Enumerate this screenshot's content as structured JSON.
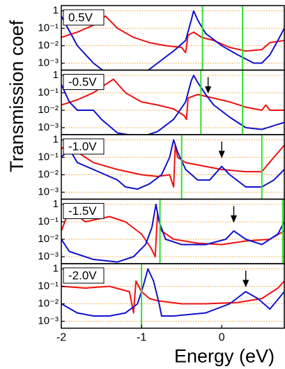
{
  "ylabel": "Transmission coef",
  "chart_data": [
    {
      "type": "line",
      "label": "0.5V",
      "log_y": true,
      "grid": true,
      "grid_color": "#f0a030",
      "xlim": [
        -2,
        0.78
      ],
      "ylim": [
        0.0004,
        2
      ],
      "yticks": [
        1,
        {
          "value": 0.1,
          "label": "10⁻¹"
        },
        {
          "value": 0.01,
          "label": "10⁻²"
        },
        {
          "value": 0.001,
          "label": "10⁻³"
        }
      ],
      "vlines": [
        -0.24,
        0.26
      ],
      "vline_color": "#33dd33",
      "arrows": [],
      "series": [
        {
          "color": "#ee1111",
          "x": [
            -2,
            -1.8,
            -1.6,
            -1.45,
            -1.3,
            -1.1,
            -0.9,
            -0.7,
            -0.5,
            -0.45,
            -0.42,
            -0.35,
            -0.25,
            -0.1,
            0.1,
            0.3,
            0.5,
            0.6,
            0.78
          ],
          "values": [
            0.03,
            0.06,
            0.15,
            0.5,
            0.1,
            0.03,
            0.015,
            0.01,
            0.008,
            0.004,
            0.04,
            0.06,
            0.03,
            0.02,
            0.008,
            0.005,
            0.006,
            0.015,
            0.02
          ]
        },
        {
          "color": "#1111cc",
          "x": [
            -2,
            -1.8,
            -1.6,
            -1.4,
            -1.0,
            -0.8,
            -0.6,
            -0.45,
            -0.38,
            -0.35,
            -0.3,
            -0.2,
            0,
            0.2,
            0.4,
            0.5,
            0.6,
            0.7,
            0.78
          ],
          "values": [
            0.5,
            0.01,
            0.001,
            0.0002,
            0.0002,
            0.001,
            0.005,
            0.02,
            0.3,
            1.0,
            0.3,
            0.05,
            0.01,
            0.003,
            0.001,
            0.001,
            0.003,
            0.02,
            0.1
          ]
        }
      ]
    },
    {
      "type": "line",
      "label": "-0.5V",
      "log_y": true,
      "grid": true,
      "grid_color": "#f0a030",
      "xlim": [
        -2,
        0.78
      ],
      "ylim": [
        0.0004,
        2
      ],
      "yticks": [
        1,
        {
          "value": 0.1,
          "label": "10⁻¹"
        },
        {
          "value": 0.01,
          "label": "10⁻²"
        },
        {
          "value": 0.001,
          "label": "10⁻³"
        }
      ],
      "vlines": [
        -0.26,
        0.26
      ],
      "vline_color": "#33dd33",
      "arrows": [
        -0.17
      ],
      "series": [
        {
          "color": "#ee1111",
          "x": [
            -2,
            -1.8,
            -1.6,
            -1.45,
            -1.35,
            -1.2,
            -1,
            -0.8,
            -0.6,
            -0.47,
            -0.44,
            -0.42,
            -0.3,
            -0.1,
            0.1,
            0.3,
            0.5,
            0.55,
            0.6,
            0.78
          ],
          "values": [
            0.02,
            0.04,
            0.1,
            0.3,
            0.6,
            0.1,
            0.03,
            0.02,
            0.012,
            0.005,
            0.003,
            0.05,
            0.08,
            0.05,
            0.03,
            0.015,
            0.01,
            0.02,
            0.01,
            0.01
          ]
        },
        {
          "color": "#1111cc",
          "x": [
            -2,
            -1.9,
            -1.8,
            -1.6,
            -1.5,
            -1.3,
            -1.0,
            -0.8,
            -0.6,
            -0.45,
            -0.38,
            -0.35,
            -0.3,
            -0.2,
            -0.1,
            0.1,
            0.3,
            0.5,
            0.78
          ],
          "values": [
            0.3,
            0.03,
            0.01,
            0.01,
            0.003,
            0.0005,
            0.0003,
            0.0006,
            0.003,
            0.03,
            0.5,
            1.0,
            0.4,
            0.08,
            0.02,
            0.004,
            0.001,
            0.0008,
            0.002
          ]
        }
      ]
    },
    {
      "type": "line",
      "label": "-1.0V",
      "log_y": true,
      "grid": true,
      "grid_color": "#f0a030",
      "xlim": [
        -2,
        0.78
      ],
      "ylim": [
        0.0004,
        2
      ],
      "yticks": [
        1,
        {
          "value": 0.1,
          "label": "10⁻¹"
        },
        {
          "value": 0.01,
          "label": "10⁻²"
        },
        {
          "value": 0.001,
          "label": "10⁻³"
        }
      ],
      "vlines": [
        -0.5,
        0.5
      ],
      "vline_color": "#33dd33",
      "arrows": [
        0
      ],
      "series": [
        {
          "color": "#ee1111",
          "x": [
            -2,
            -1.9,
            -1.8,
            -1.6,
            -1.3,
            -1,
            -0.8,
            -0.65,
            -0.6,
            -0.58,
            -0.55,
            -0.45,
            -0.2,
            0,
            0.3,
            0.5,
            0.65,
            0.78
          ],
          "values": [
            0.3,
            0.8,
            0.2,
            0.05,
            0.02,
            0.01,
            0.008,
            0.01,
            0.002,
            0.5,
            0.1,
            0.05,
            0.03,
            0.02,
            0.015,
            0.015,
            0.1,
            0.5
          ]
        },
        {
          "color": "#1111cc",
          "x": [
            -2,
            -1.9,
            -1.8,
            -1.6,
            -1.45,
            -1.3,
            -1.2,
            -1.05,
            -0.9,
            -0.75,
            -0.65,
            -0.6,
            -0.55,
            -0.45,
            -0.3,
            -0.15,
            0,
            0.1,
            0.3,
            0.5,
            0.65,
            0.78
          ],
          "values": [
            0.1,
            0.3,
            0.05,
            0.02,
            0.01,
            0.005,
            0.002,
            0.0015,
            0.003,
            0.01,
            0.1,
            1.0,
            0.2,
            0.02,
            0.005,
            0.005,
            0.03,
            0.01,
            0.002,
            0.002,
            0.005,
            0.02
          ]
        }
      ]
    },
    {
      "type": "line",
      "label": "-1.5V",
      "log_y": true,
      "grid": true,
      "grid_color": "#f0a030",
      "xlim": [
        -2,
        0.78
      ],
      "ylim": [
        0.0004,
        2
      ],
      "yticks": [
        1,
        {
          "value": 0.1,
          "label": "10⁻¹"
        },
        {
          "value": 0.01,
          "label": "10⁻²"
        },
        {
          "value": 0.001,
          "label": "10⁻³"
        }
      ],
      "vlines": [
        -0.77,
        0.76
      ],
      "vline_color": "#33dd33",
      "arrows": [
        0.15
      ],
      "series": [
        {
          "color": "#ee1111",
          "x": [
            -2,
            -1.9,
            -1.7,
            -1.4,
            -1.2,
            -1.0,
            -0.88,
            -0.83,
            -0.8,
            -0.75,
            -0.6,
            -0.3,
            0,
            0.3,
            0.6,
            0.78
          ],
          "values": [
            0.03,
            0.5,
            0.1,
            0.2,
            0.1,
            0.02,
            0.003,
            0.001,
            0.3,
            0.03,
            0.01,
            0.006,
            0.005,
            0.008,
            0.01,
            0.03
          ]
        },
        {
          "color": "#1111cc",
          "x": [
            -2,
            -1.9,
            -1.6,
            -1.3,
            -1.1,
            -0.95,
            -0.87,
            -0.82,
            -0.78,
            -0.7,
            -0.5,
            -0.2,
            0.05,
            0.15,
            0.3,
            0.5,
            0.7,
            0.78
          ],
          "values": [
            0.01,
            0.002,
            0.0007,
            0.0005,
            0.001,
            0.005,
            0.05,
            1.0,
            0.1,
            0.01,
            0.005,
            0.005,
            0.01,
            0.03,
            0.01,
            0.005,
            0.02,
            0.1
          ]
        }
      ]
    },
    {
      "type": "line",
      "label": "-2.0V",
      "log_y": true,
      "grid": true,
      "grid_color": "#f0a030",
      "xlim": [
        -2,
        0.78
      ],
      "ylim": [
        0.0004,
        2
      ],
      "yticks": [
        1,
        {
          "value": 0.1,
          "label": "10⁻¹"
        },
        {
          "value": 0.01,
          "label": "10⁻²"
        },
        {
          "value": 0.001,
          "label": "10⁻³"
        }
      ],
      "vlines": [
        -1.0
      ],
      "vline_color": "#33dd33",
      "arrows": [
        0.3
      ],
      "xticks": [
        -2,
        -1,
        0
      ],
      "xlabel": "Energy (eV)",
      "series": [
        {
          "color": "#ee1111",
          "x": [
            -2,
            -1.7,
            -1.4,
            -1.15,
            -1.1,
            -1.07,
            -1.0,
            -0.9,
            -0.8,
            -0.5,
            -0.2,
            0.2,
            0.5,
            0.7,
            0.78
          ],
          "values": [
            0.1,
            0.08,
            0.1,
            0.05,
            0.003,
            0.2,
            0.05,
            0.02,
            0.015,
            0.01,
            0.01,
            0.012,
            0.02,
            0.08,
            0.2
          ]
        },
        {
          "color": "#1111cc",
          "x": [
            -2,
            -1.8,
            -1.6,
            -1.4,
            -1.2,
            -1.05,
            -0.98,
            -0.92,
            -0.85,
            -0.78,
            -0.75,
            -0.6,
            -0.2,
            0.1,
            0.3,
            0.45,
            0.6,
            0.78
          ],
          "values": [
            0.01,
            0.003,
            0.002,
            0.002,
            0.003,
            0.01,
            0.1,
            1.0,
            0.2,
            0.01,
            0.002,
            0.002,
            0.003,
            0.01,
            0.05,
            0.02,
            0.005,
            0.05
          ]
        }
      ]
    }
  ]
}
